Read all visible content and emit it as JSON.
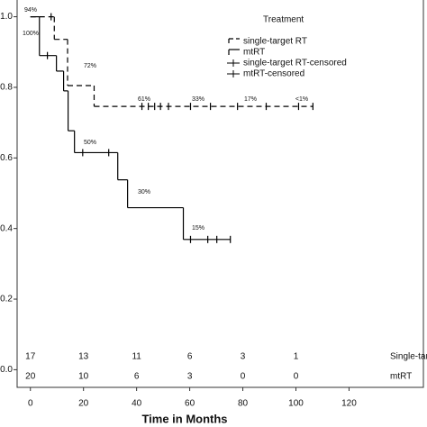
{
  "chart_data": {
    "type": "step",
    "x_label": "Time in Months",
    "xlim": [
      -5,
      148
    ],
    "xticks": [
      0,
      20,
      40,
      60,
      80,
      100,
      120
    ],
    "ylim": [
      -0.05,
      1.05
    ],
    "yticks": [
      {
        "value": 0,
        "label": "0.0"
      },
      {
        "value": 0.2,
        "label": "0.2"
      },
      {
        "value": 0.4,
        "label": "0.4"
      },
      {
        "value": 0.6,
        "label": "0.6"
      },
      {
        "value": 0.8,
        "label": "0.8"
      },
      {
        "value": 1,
        "label": "1.0"
      }
    ],
    "legend_title": "Treatment",
    "legend": "top-right",
    "series": [
      {
        "name": "single-target RT",
        "color": "#000000",
        "dash": true,
        "kind": "step",
        "x": [
          0,
          9,
          14,
          24,
          106.4
        ],
        "values": [
          1,
          0.936,
          0.805,
          0.746,
          0.746
        ]
      },
      {
        "name": "mtRT",
        "color": "#000000",
        "dash": false,
        "kind": "step",
        "x": [
          0,
          3.4,
          9.8,
          12.5,
          14.2,
          16.6,
          32.9,
          36.6,
          57.6,
          75.3
        ],
        "values": [
          1,
          0.89,
          0.846,
          0.79,
          0.677,
          0.615,
          0.538,
          0.459,
          0.369,
          0.369
        ]
      },
      {
        "name": "single-target RT-censored",
        "color": "#000000",
        "kind": "censor",
        "x": [
          7.8,
          42,
          44.4,
          46.8,
          49,
          52,
          60.3,
          67.8,
          78,
          88.8,
          101,
          106.4
        ],
        "values": [
          1,
          0.746,
          0.746,
          0.746,
          0.746,
          0.746,
          0.746,
          0.746,
          0.746,
          0.746,
          0.746,
          0.746
        ]
      },
      {
        "name": "mtRT-censored",
        "color": "#000000",
        "kind": "censor",
        "x": [
          6.4,
          19.7,
          29.5,
          60.3,
          66.8,
          70.2,
          75.3
        ],
        "values": [
          0.89,
          0.615,
          0.615,
          0.369,
          0.369,
          0.369,
          0.369
        ]
      }
    ],
    "annotations": [
      "94%",
      "100%",
      "72%",
      "61%",
      "33%",
      "17%",
      "<1%",
      "50%",
      "30%",
      "15%"
    ],
    "at_risk": [
      {
        "name": "Single-target RT",
        "values": [
          17,
          13,
          11,
          6,
          3,
          1
        ]
      },
      {
        "name": "mtRT",
        "values": [
          20,
          10,
          6,
          3,
          0,
          0
        ]
      }
    ]
  }
}
